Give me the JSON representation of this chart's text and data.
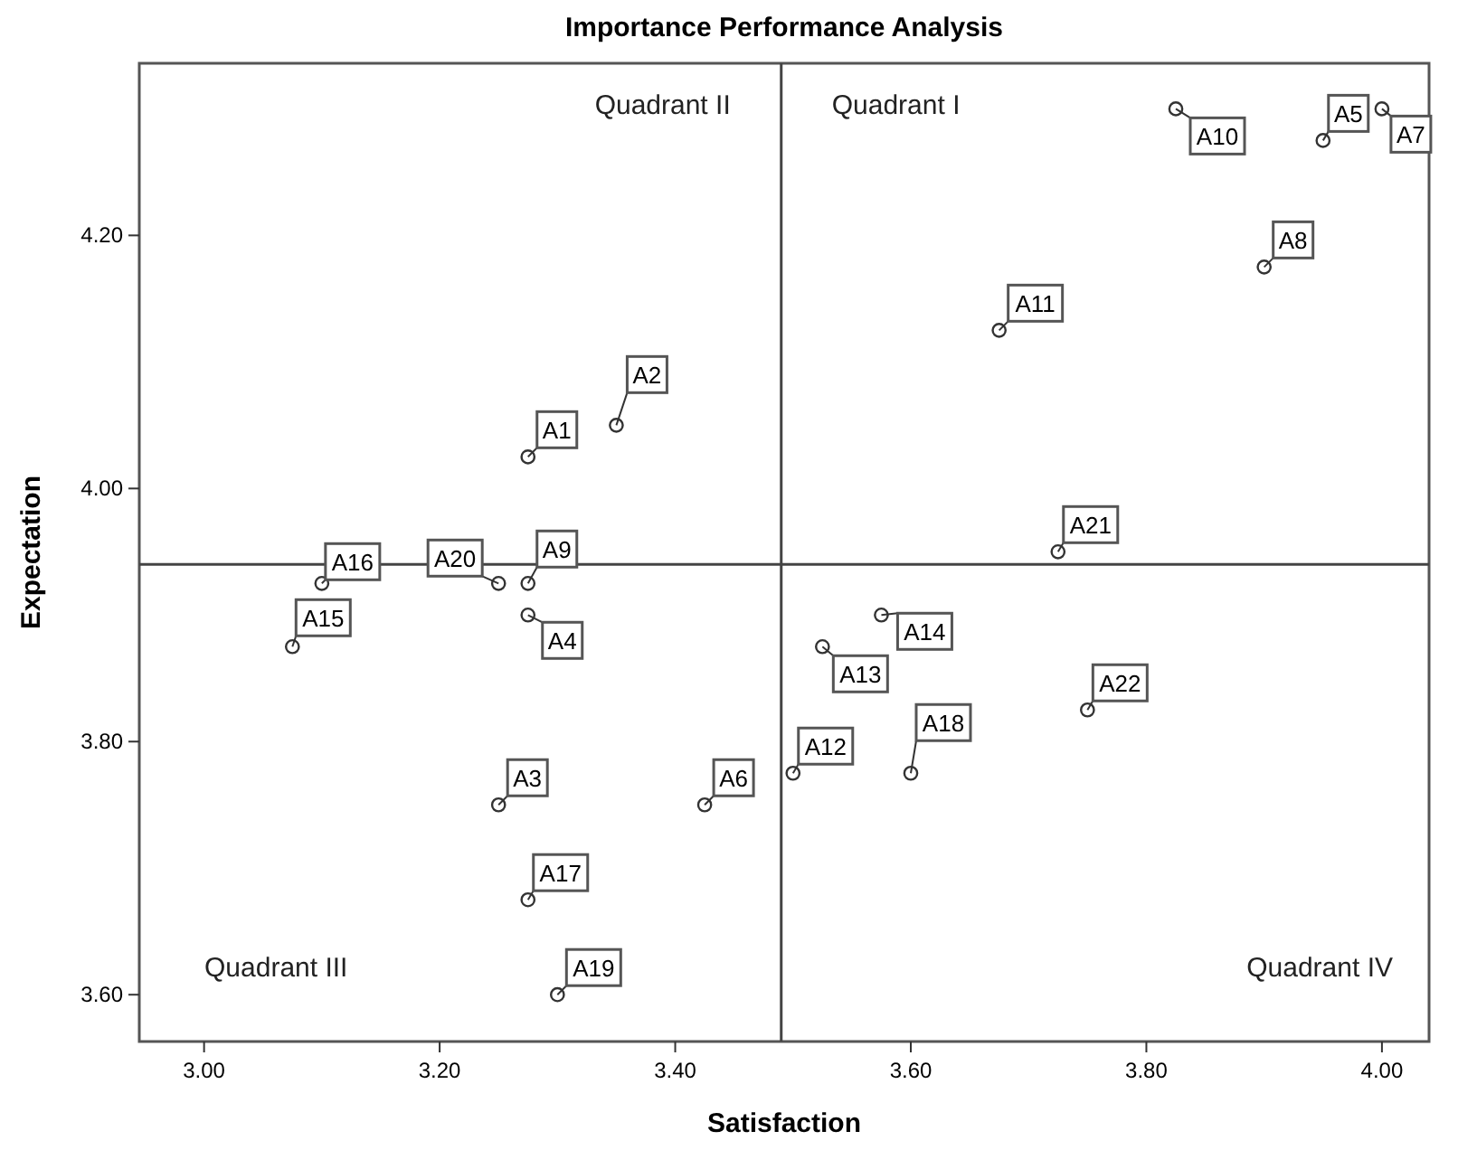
{
  "chart_data": {
    "type": "scatter",
    "title": "Importance Performance Analysis",
    "xlabel": "Satisfaction",
    "ylabel": "Expectation",
    "xlim": [
      2.945,
      4.04
    ],
    "ylim": [
      3.563,
      4.336
    ],
    "xticks": [
      {
        "value": 3,
        "label": "3.00"
      },
      {
        "value": 3.2,
        "label": "3.20"
      },
      {
        "value": 3.4,
        "label": "3.40"
      },
      {
        "value": 3.6,
        "label": "3.60"
      },
      {
        "value": 3.8,
        "label": "3.80"
      },
      {
        "value": 4,
        "label": "4.00"
      }
    ],
    "yticks": [
      {
        "value": 3.6,
        "label": "3.60"
      },
      {
        "value": 3.8,
        "label": "3.80"
      },
      {
        "value": 4,
        "label": "4.00"
      },
      {
        "value": 4.2,
        "label": "4.20"
      }
    ],
    "grid": false,
    "marker": "circle",
    "series": [
      {
        "color": "#333333",
        "x": [
          3.275,
          3.35,
          3.25,
          3.275,
          3.95,
          3.425,
          4.0,
          3.9,
          3.275,
          3.825,
          3.675,
          3.5,
          3.525,
          3.575,
          3.075,
          3.1,
          3.275,
          3.6,
          3.3,
          3.25,
          3.725,
          3.75
        ],
        "values": [
          4.025,
          4.05,
          3.75,
          3.9,
          4.275,
          3.75,
          4.3,
          4.175,
          3.925,
          4.3,
          4.125,
          3.775,
          3.875,
          3.9,
          3.875,
          3.925,
          3.675,
          3.775,
          3.6,
          3.925,
          3.95,
          3.825
        ]
      }
    ],
    "ref_lines": [
      {
        "axis": "x",
        "value": 3.49
      },
      {
        "axis": "y",
        "value": 3.94
      }
    ],
    "annotations": [
      "Quadrant II",
      "Quadrant I",
      "Quadrant III",
      "Quadrant IV",
      {
        "text": "A1",
        "x": 3.275,
        "y": 4.025
      },
      {
        "text": "A2",
        "x": 3.35,
        "y": 4.05
      },
      {
        "text": "A3",
        "x": 3.25,
        "y": 3.75
      },
      {
        "text": "A4",
        "x": 3.275,
        "y": 3.9
      },
      {
        "text": "A5",
        "x": 3.95,
        "y": 4.275
      },
      {
        "text": "A6",
        "x": 3.425,
        "y": 3.75
      },
      {
        "text": "A7",
        "x": 4.0,
        "y": 4.3
      },
      {
        "text": "A8",
        "x": 3.9,
        "y": 4.175
      },
      {
        "text": "A9",
        "x": 3.275,
        "y": 3.925
      },
      {
        "text": "A10",
        "x": 3.825,
        "y": 4.3
      },
      {
        "text": "A11",
        "x": 3.675,
        "y": 4.125
      },
      {
        "text": "A12",
        "x": 3.5,
        "y": 3.775
      },
      {
        "text": "A13",
        "x": 3.525,
        "y": 3.875
      },
      {
        "text": "A14",
        "x": 3.575,
        "y": 3.9
      },
      {
        "text": "A15",
        "x": 3.075,
        "y": 3.875
      },
      {
        "text": "A16",
        "x": 3.1,
        "y": 3.925
      },
      {
        "text": "A17",
        "x": 3.275,
        "y": 3.675
      },
      {
        "text": "A18",
        "x": 3.6,
        "y": 3.775
      },
      {
        "text": "A19",
        "x": 3.3,
        "y": 3.6
      },
      {
        "text": "A20",
        "x": 3.25,
        "y": 3.925
      },
      {
        "text": "A21",
        "x": 3.725,
        "y": 3.95
      },
      {
        "text": "A22",
        "x": 3.75,
        "y": 3.825
      }
    ]
  }
}
